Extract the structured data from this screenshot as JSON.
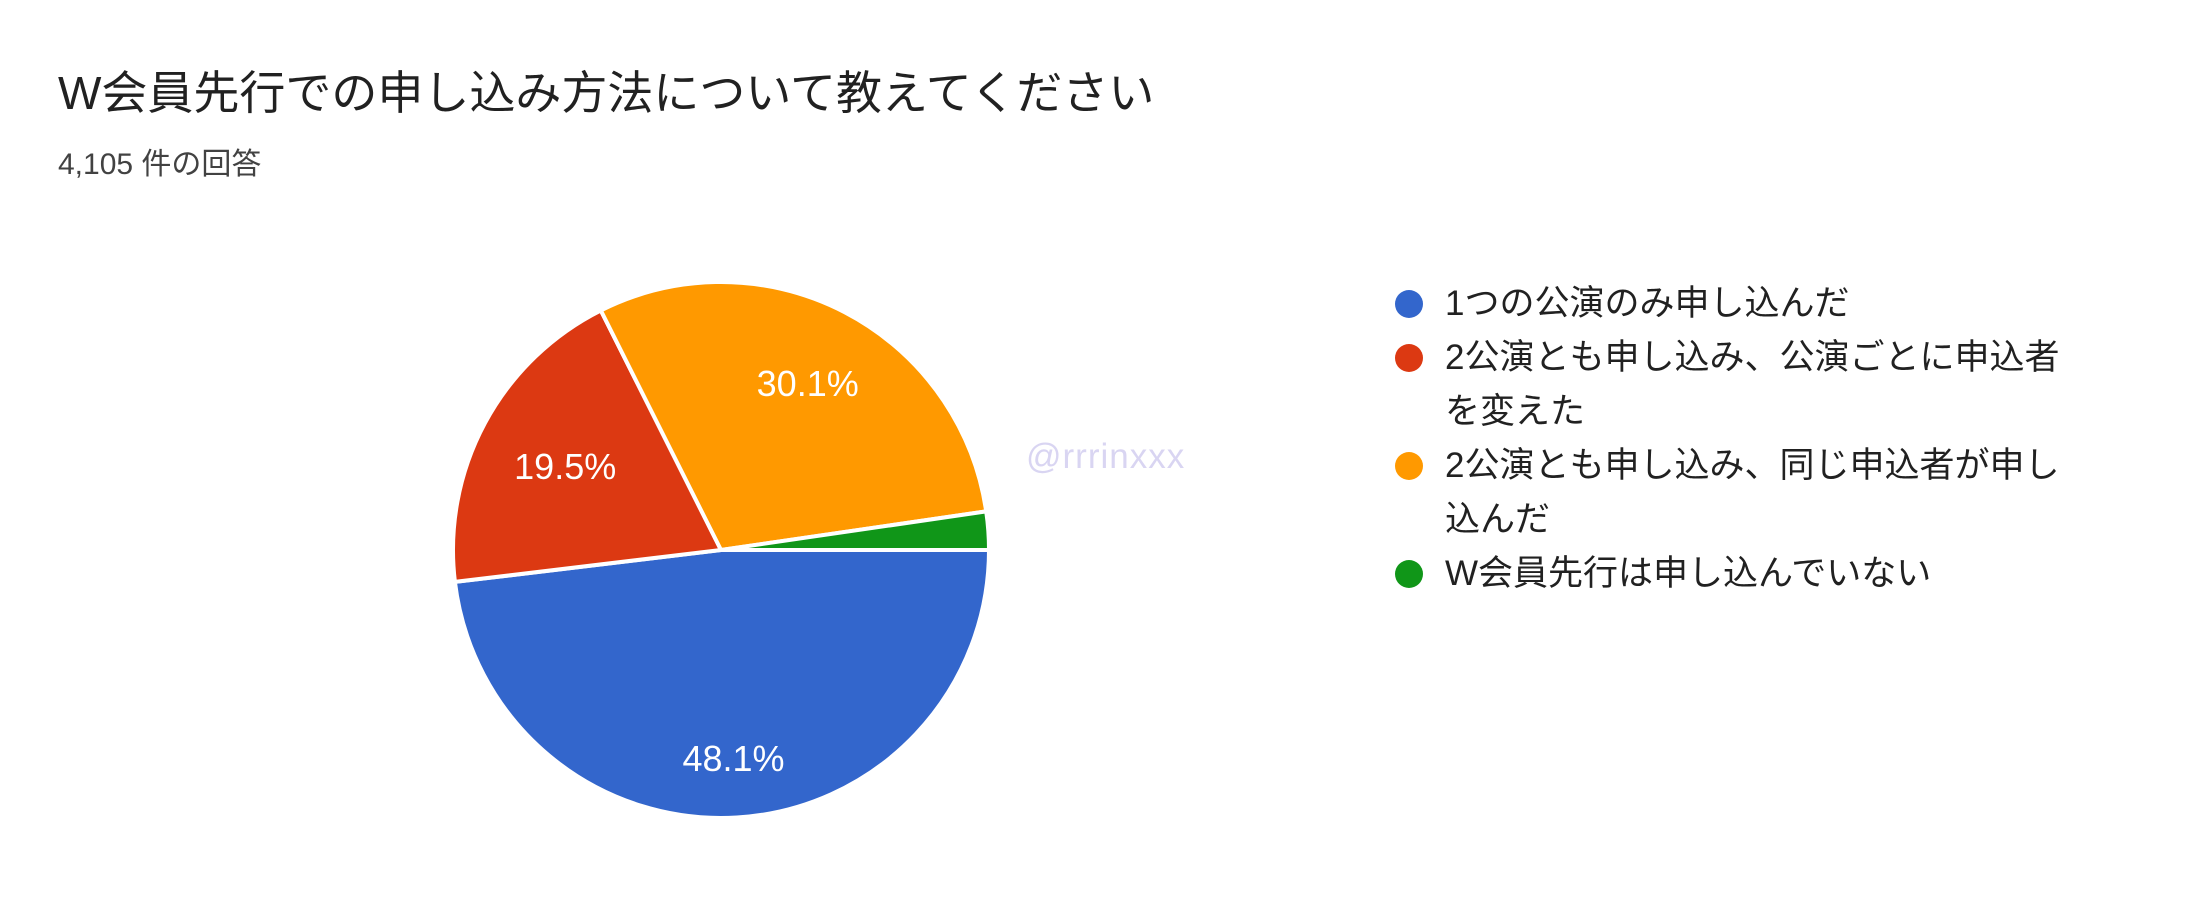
{
  "header": {
    "title": "W会員先行での申し込み方法について教えてください",
    "response_count": "4,105 件の回答"
  },
  "watermark": "@rrrinxxx",
  "legend": {
    "position": "right",
    "items": [
      {
        "label": "1つの公演のみ申し込んだ",
        "color": "#3366CC"
      },
      {
        "label": "2公演とも申し込み、公演ごとに申込者\nを変えた",
        "color": "#DC3912"
      },
      {
        "label": "2公演とも申し込み、同じ申込者が申し\n込んだ",
        "color": "#FF9900"
      },
      {
        "label": "W会員先行は申し込んでいない",
        "color": "#109618"
      }
    ]
  },
  "chart_data": {
    "type": "pie",
    "title": "W会員先行での申し込み方法について教えてください",
    "subtitle": "4,105 件の回答",
    "categories": [
      "1つの公演のみ申し込んだ",
      "2公演とも申し込み、公演ごとに申込者を変えた",
      "2公演とも申し込み、同じ申込者が申し込んだ",
      "W会員先行は申し込んでいない"
    ],
    "values": [
      48.1,
      19.5,
      30.1,
      2.3
    ],
    "slice_labels": [
      "48.1%",
      "19.5%",
      "30.1%",
      ""
    ],
    "colors": [
      "#3366CC",
      "#DC3912",
      "#FF9900",
      "#109618"
    ],
    "legend_position": "right",
    "start_angle_deg_clockwise_from_top": 90,
    "slice_border_color": "#ffffff"
  }
}
